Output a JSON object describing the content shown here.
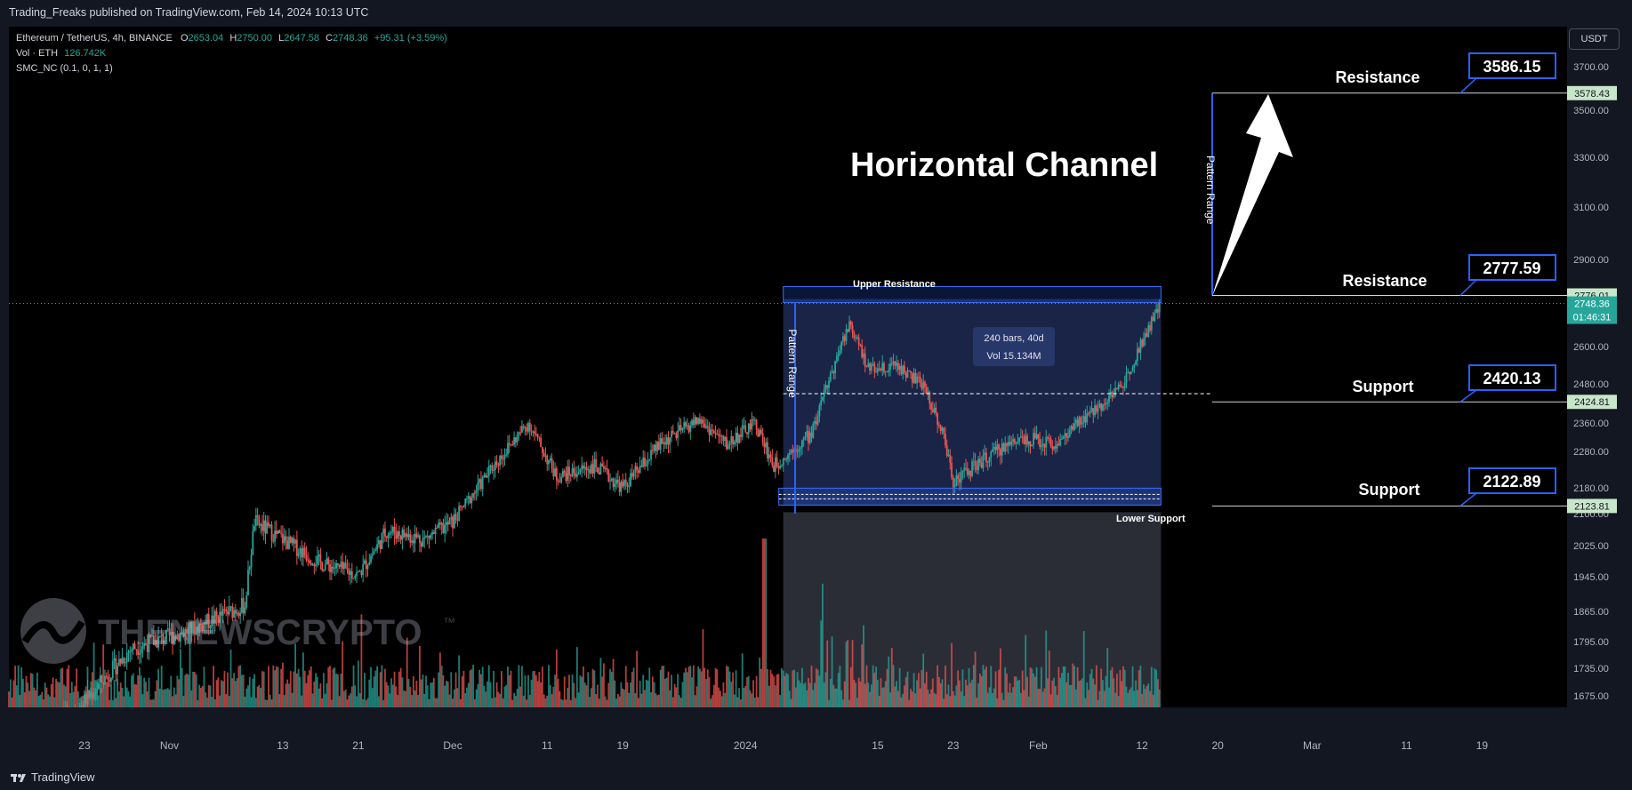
{
  "header": {
    "published": "Trading_Freaks published on TradingView.com, Feb 14, 2024 10:13 UTC"
  },
  "legend": {
    "symbol": "Ethereum / TetherUS, 4h, BINANCE",
    "o_label": "O",
    "o": "2653.04",
    "h_label": "H",
    "h": "2750.00",
    "l_label": "L",
    "l": "2647.58",
    "c_label": "C",
    "c": "2748.36",
    "change": "+95.31 (+3.59%)",
    "vol_label": "Vol · ETH",
    "vol": "126.742K",
    "indicator": "SMC_NC (0.1, 0, 1, 1)"
  },
  "currency_button": "USDT",
  "footer": {
    "brand": "TradingView"
  },
  "colors": {
    "up": "#26a69a",
    "down": "#ef5350",
    "box": "#2a3a6e",
    "accent": "#2962ff",
    "background": "#000000"
  },
  "annotations": {
    "title": "Horizontal Channel",
    "upper_resistance": "Upper Resistance",
    "lower_support": "Lower Support",
    "pattern_range": "Pattern Range",
    "measure_bars": "240 bars, 40d",
    "measure_vol": "Vol 15.134M",
    "levels": [
      {
        "label": "Resistance",
        "value": "3586.15",
        "axis_tag": "3578.43",
        "price": 3578.43
      },
      {
        "label": "Resistance",
        "value": "2777.59",
        "axis_tag": "2776.01",
        "price": 2776.01
      },
      {
        "label": "Support",
        "value": "2420.13",
        "axis_tag": "2424.81",
        "price": 2424.81
      },
      {
        "label": "Support",
        "value": "2122.89",
        "axis_tag": "2123.81",
        "price": 2123.81
      }
    ],
    "current_price": "2748.36",
    "countdown": "01:46:31",
    "watermark": "THENEWSCRYPTO"
  },
  "chart_data": {
    "type": "candlestick",
    "title": "Ethereum / TetherUS, 4h, BINANCE",
    "y_ticks": [
      "3700.00",
      "3500.00",
      "3300.00",
      "3100.00",
      "2900.00",
      "2600.00",
      "2480.00",
      "2360.00",
      "2280.00",
      "2180.00",
      "2100.00",
      "2025.00",
      "1945.00",
      "1865.00",
      "1795.00",
      "1735.00",
      "1675.00"
    ],
    "y_tick_values": [
      3700,
      3500,
      3300,
      3100,
      2900,
      2600,
      2480,
      2360,
      2280,
      2180,
      2100,
      2025,
      1945,
      1865,
      1795,
      1735,
      1675
    ],
    "ylim": [
      1640,
      3760
    ],
    "x_ticks": [
      "23",
      "Nov",
      "13",
      "21",
      "Dec",
      "11",
      "19",
      "2024",
      "15",
      "23",
      "Feb",
      "12",
      "20",
      "Mar",
      "11",
      "19"
    ],
    "x_tick_dates": [
      "2023-10-23",
      "2023-11-01",
      "2023-11-13",
      "2023-11-21",
      "2023-12-01",
      "2023-12-11",
      "2023-12-19",
      "2024-01-01",
      "2024-01-15",
      "2024-01-23",
      "2024-02-01",
      "2024-02-12",
      "2024-02-20",
      "2024-03-01",
      "2024-03-11",
      "2024-03-19"
    ],
    "x_range": [
      "2023-10-15",
      "2024-03-28"
    ],
    "close_path": [
      [
        "2023-10-15",
        1580
      ],
      [
        "2023-10-22",
        1640
      ],
      [
        "2023-10-28",
        1780
      ],
      [
        "2023-11-03",
        1820
      ],
      [
        "2023-11-09",
        1880
      ],
      [
        "2023-11-10",
        2080
      ],
      [
        "2023-11-13",
        2040
      ],
      [
        "2023-11-17",
        1980
      ],
      [
        "2023-11-21",
        1950
      ],
      [
        "2023-11-24",
        2060
      ],
      [
        "2023-11-28",
        2040
      ],
      [
        "2023-12-01",
        2080
      ],
      [
        "2023-12-05",
        2230
      ],
      [
        "2023-12-09",
        2360
      ],
      [
        "2023-12-12",
        2210
      ],
      [
        "2023-12-16",
        2240
      ],
      [
        "2023-12-19",
        2180
      ],
      [
        "2023-12-23",
        2300
      ],
      [
        "2023-12-27",
        2370
      ],
      [
        "2023-12-30",
        2300
      ],
      [
        "2024-01-02",
        2360
      ],
      [
        "2024-01-04",
        2240
      ],
      [
        "2024-01-08",
        2330
      ],
      [
        "2024-01-10",
        2500
      ],
      [
        "2024-01-12",
        2680
      ],
      [
        "2024-01-14",
        2530
      ],
      [
        "2024-01-17",
        2540
      ],
      [
        "2024-01-20",
        2470
      ],
      [
        "2024-01-22",
        2320
      ],
      [
        "2024-01-23",
        2200
      ],
      [
        "2024-01-27",
        2270
      ],
      [
        "2024-01-30",
        2320
      ],
      [
        "2024-02-03",
        2300
      ],
      [
        "2024-02-07",
        2400
      ],
      [
        "2024-02-10",
        2480
      ],
      [
        "2024-02-12",
        2620
      ],
      [
        "2024-02-14",
        2748.36
      ]
    ],
    "box_start": "2024-01-05",
    "box_end": "2024-02-14",
    "box_top": 2776.01,
    "box_bottom": 2123.81,
    "box_mid": 2450
  }
}
